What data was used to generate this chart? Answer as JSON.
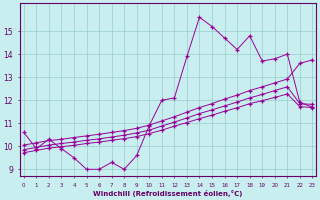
{
  "xlabel": "Windchill (Refroidissement éolien,°C)",
  "background_color": "#c8eef0",
  "grid_color": "#99cccc",
  "line_color": "#990099",
  "x": [
    0,
    1,
    2,
    3,
    4,
    5,
    6,
    7,
    8,
    9,
    10,
    11,
    12,
    13,
    14,
    15,
    16,
    17,
    18,
    19,
    20,
    21,
    22,
    23
  ],
  "y_main": [
    10.6,
    9.9,
    10.3,
    9.9,
    9.5,
    9.0,
    9.0,
    9.3,
    9.0,
    9.6,
    10.9,
    12.0,
    12.1,
    13.9,
    15.6,
    15.2,
    14.7,
    14.2,
    14.8,
    13.7,
    13.8,
    14.0,
    11.9,
    11.7
  ],
  "y_line1": [
    10.05,
    10.15,
    10.25,
    10.3,
    10.38,
    10.45,
    10.52,
    10.6,
    10.68,
    10.78,
    10.92,
    11.1,
    11.28,
    11.48,
    11.68,
    11.85,
    12.05,
    12.22,
    12.42,
    12.58,
    12.75,
    12.92,
    13.6,
    13.75
  ],
  "y_line2": [
    9.85,
    9.95,
    10.05,
    10.12,
    10.18,
    10.26,
    10.32,
    10.4,
    10.48,
    10.58,
    10.7,
    10.88,
    11.05,
    11.23,
    11.42,
    11.58,
    11.75,
    11.92,
    12.1,
    12.25,
    12.42,
    12.58,
    11.85,
    11.82
  ],
  "y_line3": [
    9.72,
    9.82,
    9.92,
    9.98,
    10.04,
    10.12,
    10.18,
    10.26,
    10.33,
    10.42,
    10.55,
    10.7,
    10.87,
    11.03,
    11.2,
    11.35,
    11.52,
    11.67,
    11.85,
    11.98,
    12.12,
    12.27,
    11.72,
    11.68
  ],
  "ylim": [
    8.7,
    16.2
  ],
  "yticks": [
    9,
    10,
    11,
    12,
    13,
    14,
    15
  ],
  "xtick_labels": [
    "0",
    "1",
    "2",
    "3",
    "4",
    "5",
    "6",
    "7",
    "8",
    "9",
    "10",
    "11",
    "12",
    "13",
    "14",
    "15",
    "16",
    "17",
    "18",
    "19",
    "20",
    "21",
    "22",
    "23"
  ]
}
